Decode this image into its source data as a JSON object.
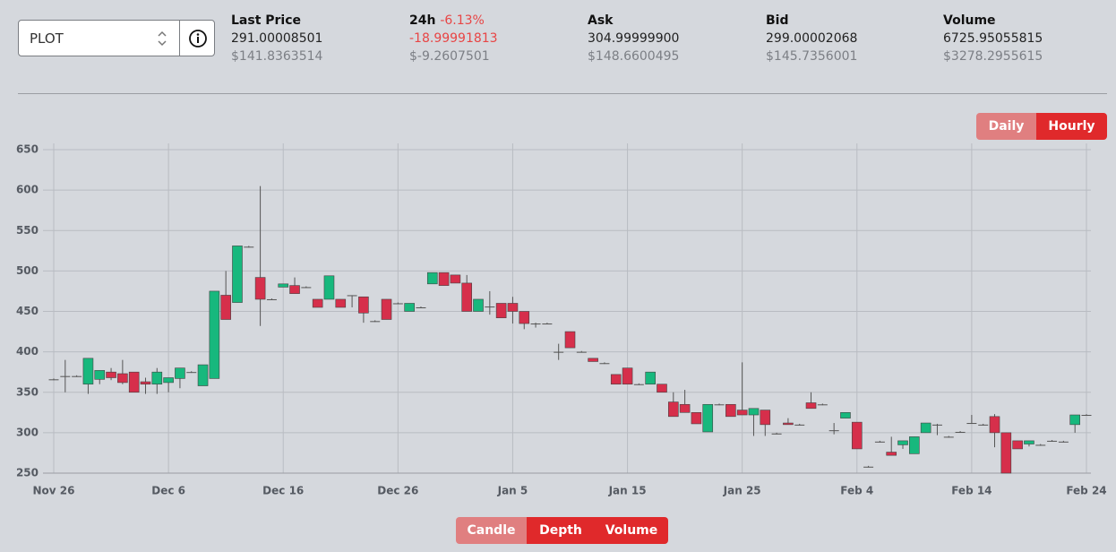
{
  "selector": {
    "value": "PLOT"
  },
  "stats": [
    {
      "label": "Last Price",
      "value": "291.00008501",
      "usd": "$141.8363514"
    },
    {
      "label": "24h",
      "change": "-6.13%",
      "value": "-18.99991813",
      "usd": "$-9.2607501"
    },
    {
      "label": "Ask",
      "value": "304.99999900",
      "usd": "$148.6600495"
    },
    {
      "label": "Bid",
      "value": "299.00002068",
      "usd": "$145.7356001"
    },
    {
      "label": "Volume",
      "value": "6725.95055815",
      "usd": "$3278.2955615"
    }
  ],
  "timeframes": [
    "Daily",
    "Hourly"
  ],
  "views": [
    "Candle",
    "Depth",
    "Volume"
  ],
  "chart_data": {
    "type": "candlestick",
    "categories": [
      "Nov 26",
      null,
      null,
      null,
      null,
      null,
      null,
      null,
      null,
      null,
      "Dec 6",
      null,
      null,
      null,
      null,
      null,
      null,
      null,
      null,
      null,
      "Dec 16",
      null,
      null,
      null,
      null,
      null,
      null,
      null,
      null,
      null,
      "Dec 26",
      null,
      null,
      null,
      null,
      null,
      null,
      null,
      null,
      null,
      "Jan 5",
      null,
      null,
      null,
      null,
      null,
      null,
      null,
      null,
      null,
      "Jan 15",
      null,
      null,
      null,
      null,
      null,
      null,
      null,
      null,
      null,
      "Jan 25",
      null,
      null,
      null,
      null,
      null,
      null,
      null,
      null,
      null,
      "Feb 4",
      null,
      null,
      null,
      null,
      null,
      null,
      null,
      null,
      null,
      "Feb 14",
      null,
      null,
      null,
      null,
      null,
      null,
      null,
      null,
      null,
      "Feb 24"
    ],
    "open": [
      366,
      370,
      370,
      360,
      366,
      375,
      373,
      375,
      363,
      360,
      362,
      367,
      375,
      358,
      367,
      470,
      461,
      530,
      492,
      465,
      480,
      482,
      480,
      465,
      465,
      465,
      470,
      468,
      438,
      465,
      460,
      450,
      455,
      484,
      498,
      495,
      485,
      450,
      456,
      460,
      460,
      450,
      435,
      435,
      400,
      425,
      400,
      392,
      386,
      372,
      380,
      360,
      360,
      360,
      338,
      335,
      325,
      301,
      335,
      335,
      328,
      322,
      328,
      299,
      312,
      310,
      337,
      335,
      303,
      318,
      313,
      258,
      289,
      276,
      285,
      274,
      300,
      310,
      295,
      301,
      312,
      310,
      320,
      300,
      290,
      286,
      285,
      290,
      289,
      310,
      322
    ],
    "high": [
      367,
      390,
      371,
      392,
      377,
      380,
      390,
      375,
      368,
      380,
      368,
      380,
      376,
      384,
      475,
      500,
      531,
      531,
      605,
      466,
      484,
      492,
      481,
      465,
      494,
      465,
      470,
      468,
      439,
      465,
      461,
      460,
      456,
      498,
      498,
      495,
      495,
      465,
      475,
      460,
      468,
      450,
      436,
      436,
      410,
      425,
      401,
      392,
      387,
      372,
      380,
      361,
      375,
      360,
      350,
      353,
      325,
      335,
      336,
      335,
      387,
      330,
      328,
      300,
      318,
      311,
      350,
      336,
      312,
      325,
      313,
      259,
      290,
      295,
      290,
      295,
      312,
      311,
      296,
      302,
      322,
      311,
      323,
      300,
      290,
      290,
      286,
      291,
      290,
      322,
      323
    ],
    "low": [
      365,
      350,
      369,
      348,
      360,
      365,
      360,
      350,
      348,
      348,
      350,
      355,
      374,
      358,
      367,
      440,
      461,
      529,
      432,
      464,
      480,
      472,
      479,
      455,
      465,
      455,
      455,
      436,
      437,
      440,
      459,
      450,
      454,
      484,
      482,
      485,
      450,
      450,
      446,
      442,
      435,
      428,
      430,
      434,
      390,
      405,
      399,
      388,
      385,
      360,
      360,
      359,
      360,
      350,
      320,
      325,
      311,
      301,
      334,
      320,
      322,
      296,
      296,
      298,
      310,
      309,
      330,
      334,
      298,
      318,
      280,
      257,
      288,
      272,
      280,
      274,
      300,
      297,
      294,
      300,
      311,
      309,
      282,
      250,
      280,
      283,
      284,
      289,
      288,
      300,
      321
    ],
    "close": [
      366,
      370,
      370,
      392,
      377,
      368,
      362,
      350,
      360,
      375,
      368,
      380,
      375,
      384,
      475,
      440,
      531,
      530,
      465,
      465,
      484,
      472,
      480,
      455,
      494,
      455,
      470,
      448,
      438,
      440,
      460,
      460,
      455,
      498,
      482,
      485,
      450,
      465,
      456,
      442,
      450,
      435,
      435,
      435,
      400,
      405,
      400,
      388,
      386,
      360,
      360,
      360,
      375,
      350,
      320,
      325,
      311,
      335,
      335,
      320,
      322,
      330,
      310,
      299,
      310,
      310,
      330,
      335,
      303,
      325,
      280,
      258,
      289,
      272,
      290,
      295,
      312,
      310,
      295,
      301,
      312,
      310,
      300,
      250,
      280,
      290,
      285,
      290,
      289,
      322,
      322
    ],
    "up_color": "#17b87d",
    "down_color": "#d62f4b",
    "ylim": [
      250,
      650
    ],
    "yticks": [
      250,
      300,
      350,
      400,
      450,
      500,
      550,
      600,
      650
    ],
    "grid": true
  }
}
